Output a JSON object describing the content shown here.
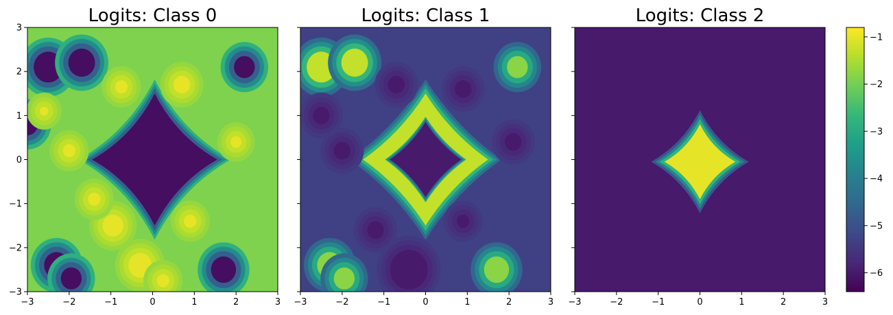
{
  "chart_data": [
    {
      "type": "heatmap",
      "title": "Logits: Class 0",
      "xlim": [
        -3,
        3
      ],
      "ylim": [
        -3,
        3
      ],
      "x_ticks": [
        "−3",
        "−2",
        "−1",
        "0",
        "1",
        "2",
        "3"
      ],
      "y_ticks": [
        "−3",
        "−2",
        "−1",
        "0",
        "1",
        "2",
        "3"
      ],
      "background_level": -1.9,
      "regions": [
        {
          "shape": "blob",
          "center": [
            0.05,
            0.0
          ],
          "radius": 1.5,
          "level": -6.2
        },
        {
          "shape": "circle",
          "center": [
            -2.5,
            2.1
          ],
          "radius": 0.35,
          "level": -6.2
        },
        {
          "shape": "circle",
          "center": [
            -1.7,
            2.2
          ],
          "radius": 0.32,
          "level": -6.2
        },
        {
          "shape": "circle",
          "center": [
            2.2,
            2.1
          ],
          "radius": 0.25,
          "level": -6.2
        },
        {
          "shape": "circle",
          "center": [
            -2.3,
            -2.4
          ],
          "radius": 0.3,
          "level": -6.2
        },
        {
          "shape": "circle",
          "center": [
            -1.95,
            -2.7
          ],
          "radius": 0.25,
          "level": -6.2
        },
        {
          "shape": "circle",
          "center": [
            1.7,
            -2.5
          ],
          "radius": 0.3,
          "level": -6.2
        },
        {
          "shape": "circle",
          "center": [
            -3.0,
            0.8
          ],
          "radius": 0.25,
          "level": -6.2
        },
        {
          "shape": "circle",
          "center": [
            -0.95,
            -1.5
          ],
          "radius": 0.25,
          "level": -1.0
        },
        {
          "shape": "circle",
          "center": [
            -0.3,
            -2.4
          ],
          "radius": 0.28,
          "level": -1.0
        },
        {
          "shape": "circle",
          "center": [
            -1.4,
            -0.9
          ],
          "radius": 0.15,
          "level": -1.0
        },
        {
          "shape": "circle",
          "center": [
            -2.0,
            0.2
          ],
          "radius": 0.15,
          "level": -1.0
        },
        {
          "shape": "circle",
          "center": [
            0.7,
            1.7
          ],
          "radius": 0.2,
          "level": -1.0
        },
        {
          "shape": "circle",
          "center": [
            -0.75,
            1.65
          ],
          "radius": 0.15,
          "level": -1.0
        },
        {
          "shape": "circle",
          "center": [
            2.0,
            0.4
          ],
          "radius": 0.13,
          "level": -1.0
        },
        {
          "shape": "circle",
          "center": [
            0.9,
            -1.4
          ],
          "radius": 0.15,
          "level": -1.0
        },
        {
          "shape": "circle",
          "center": [
            0.25,
            -2.75
          ],
          "radius": 0.15,
          "level": -1.0
        },
        {
          "shape": "circle",
          "center": [
            -2.6,
            1.1
          ],
          "radius": 0.1,
          "level": -1.0
        }
      ]
    },
    {
      "type": "heatmap",
      "title": "Logits: Class 1",
      "xlim": [
        -3,
        3
      ],
      "ylim": [
        -3,
        3
      ],
      "x_ticks": [
        "−3",
        "−2",
        "−1",
        "0",
        "1",
        "2",
        "3"
      ],
      "y_ticks": [],
      "background_level": -5.3,
      "regions": [
        {
          "shape": "ring",
          "center": [
            0.0,
            0.0
          ],
          "radius": 1.5,
          "inner_radius": 0.85,
          "level": -1.3
        },
        {
          "shape": "circle",
          "center": [
            -2.5,
            2.1
          ],
          "radius": 0.35,
          "level": -1.3
        },
        {
          "shape": "circle",
          "center": [
            -1.7,
            2.2
          ],
          "radius": 0.32,
          "level": -1.3
        },
        {
          "shape": "circle",
          "center": [
            2.2,
            2.1
          ],
          "radius": 0.25,
          "level": -1.8
        },
        {
          "shape": "circle",
          "center": [
            -2.3,
            -2.4
          ],
          "radius": 0.3,
          "level": -1.8
        },
        {
          "shape": "circle",
          "center": [
            -1.95,
            -2.7
          ],
          "radius": 0.25,
          "level": -1.8
        },
        {
          "shape": "circle",
          "center": [
            1.7,
            -2.5
          ],
          "radius": 0.3,
          "level": -1.8
        },
        {
          "shape": "circle",
          "center": [
            -0.4,
            -2.5
          ],
          "radius": 0.45,
          "level": -6.0
        },
        {
          "shape": "circle",
          "center": [
            0.9,
            1.6
          ],
          "radius": 0.2,
          "level": -6.0
        },
        {
          "shape": "circle",
          "center": [
            -2.5,
            1.0
          ],
          "radius": 0.2,
          "level": -6.0
        },
        {
          "shape": "circle",
          "center": [
            2.1,
            0.4
          ],
          "radius": 0.2,
          "level": -6.0
        },
        {
          "shape": "circle",
          "center": [
            -2.0,
            0.2
          ],
          "radius": 0.2,
          "level": -6.0
        },
        {
          "shape": "circle",
          "center": [
            -0.7,
            1.7
          ],
          "radius": 0.2,
          "level": -6.0
        },
        {
          "shape": "circle",
          "center": [
            0.9,
            -1.4
          ],
          "radius": 0.15,
          "level": -6.0
        },
        {
          "shape": "circle",
          "center": [
            -1.2,
            -1.6
          ],
          "radius": 0.2,
          "level": -6.0
        }
      ]
    },
    {
      "type": "heatmap",
      "title": "Logits: Class 2",
      "xlim": [
        -3,
        3
      ],
      "ylim": [
        -3,
        3
      ],
      "x_ticks": [
        "−3",
        "−2",
        "−1",
        "0",
        "1",
        "2",
        "3"
      ],
      "y_ticks": [],
      "background_level": -6.0,
      "regions": [
        {
          "shape": "blob",
          "center": [
            0.0,
            -0.05
          ],
          "radius": 0.85,
          "level": -1.0
        }
      ]
    }
  ],
  "colorbar": {
    "colormap": "viridis",
    "range": [
      -6.4,
      -0.8
    ],
    "ticks": [
      {
        "label": "−6",
        "value": -6
      },
      {
        "label": "−5",
        "value": -5
      },
      {
        "label": "−4",
        "value": -4
      },
      {
        "label": "−3",
        "value": -3
      },
      {
        "label": "−2",
        "value": -2
      },
      {
        "label": "−1",
        "value": -1
      }
    ]
  }
}
